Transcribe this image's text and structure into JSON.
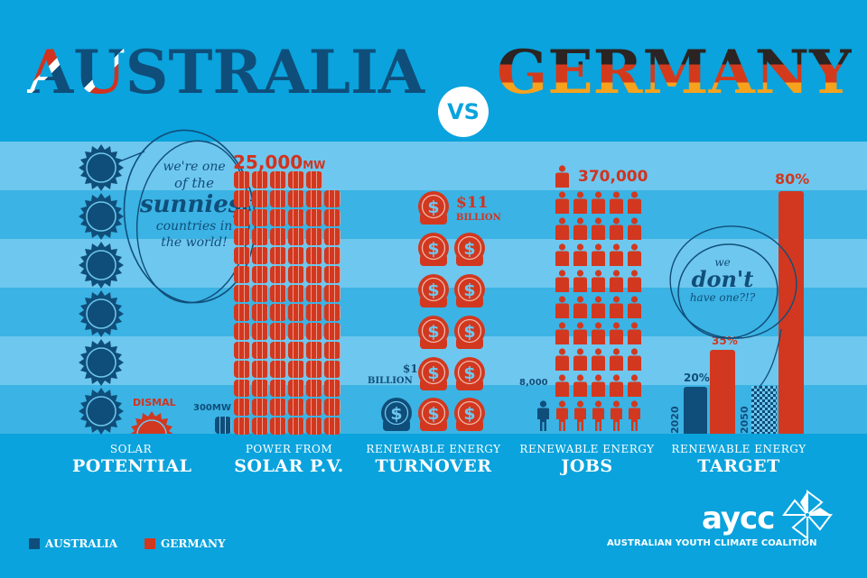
{
  "header": {
    "country_left": "AUSTRALIA",
    "country_left_flag_part": "AU",
    "country_left_rest": "STRALIA",
    "vs": "VS",
    "country_right": "GERMANY"
  },
  "colors": {
    "background": "#0aa3dd",
    "stripe_light": "#6ec7ee",
    "stripe_mid": "#3bb3e4",
    "australia": "#0f4e7a",
    "germany": "#d2381f",
    "germany_flag_black": "#2b2422",
    "germany_flag_red": "#d33a1c",
    "germany_flag_gold": "#f6a21d",
    "text": "#ffffff"
  },
  "sections": [
    {
      "id": "solar-potential",
      "caption_small": "SOLAR",
      "caption_big": "POTENTIAL",
      "australia_icon_count": 6,
      "germany_icon_count": 1,
      "germany_label": "DISMAL",
      "annotation": {
        "line1": "we're one",
        "line2": "of the",
        "line3": "sunniest",
        "line4": "countries in",
        "line5": "the world!"
      }
    },
    {
      "id": "solar-pv",
      "caption_small": "POWER FROM",
      "caption_big": "SOLAR P.V.",
      "germany_value": "25,000",
      "germany_unit": "MW",
      "australia_value": "300MW"
    },
    {
      "id": "turnover",
      "caption_small": "RENEWABLE ENERGY",
      "caption_big": "TURNOVER",
      "germany_value": "$11",
      "germany_unit": "BILLION",
      "australia_value": "$1",
      "australia_unit": "BILLION"
    },
    {
      "id": "jobs",
      "caption_small": "RENEWABLE ENERGY",
      "caption_big": "JOBS",
      "germany_value": "370,000",
      "australia_value": "8,000"
    },
    {
      "id": "target",
      "caption_small": "RENEWABLE ENERGY",
      "caption_big": "TARGET",
      "years": [
        "2020",
        "2050"
      ],
      "australia_2020": "20%",
      "germany_2020": "35%",
      "germany_2050": "80%",
      "annotation": {
        "line1": "we",
        "line2": "don't",
        "line3": "have one?!?"
      }
    }
  ],
  "legend": {
    "items": [
      {
        "label": "AUSTRALIA",
        "color": "#0f4e7a"
      },
      {
        "label": "GERMANY",
        "color": "#d2381f"
      }
    ]
  },
  "logo": {
    "wordmark": "aycc",
    "name": "AUSTRALIAN YOUTH CLIMATE COALITION"
  },
  "chart_data": [
    {
      "type": "bar",
      "title": "Solar Potential",
      "categories": [
        "Australia",
        "Germany"
      ],
      "values": [
        6,
        1
      ],
      "unit": "sun icons (relative)",
      "annotations": [
        "Germany: DISMAL",
        "Australia: we're one of the sunniest countries in the world!"
      ]
    },
    {
      "type": "bar",
      "title": "Power from Solar P.V.",
      "categories": [
        "Australia",
        "Germany"
      ],
      "values": [
        300,
        25000
      ],
      "unit": "MW"
    },
    {
      "type": "bar",
      "title": "Renewable Energy Turnover",
      "categories": [
        "Australia",
        "Germany"
      ],
      "values": [
        1,
        11
      ],
      "unit": "$ billion"
    },
    {
      "type": "bar",
      "title": "Renewable Energy Jobs",
      "categories": [
        "Australia",
        "Germany"
      ],
      "values": [
        8000,
        370000
      ],
      "unit": "jobs"
    },
    {
      "type": "bar",
      "title": "Renewable Energy Target",
      "categories": [
        "2020",
        "2050"
      ],
      "series": [
        {
          "name": "Australia",
          "values": [
            20,
            null
          ]
        },
        {
          "name": "Germany",
          "values": [
            35,
            80
          ]
        }
      ],
      "unit": "%",
      "annotations": [
        "Australia 2050: we don't have one?!?"
      ]
    }
  ]
}
